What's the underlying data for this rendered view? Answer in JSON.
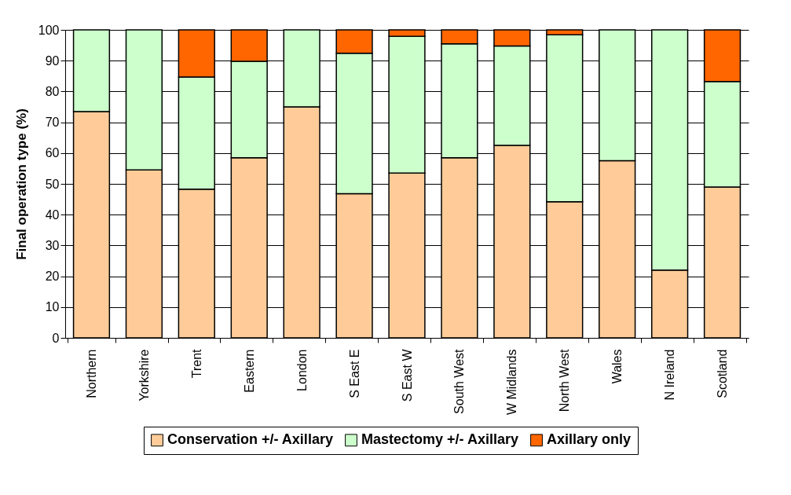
{
  "chart_data": {
    "type": "bar",
    "stacked": true,
    "ylabel": "Final operation type (%)",
    "categories": [
      "Northern",
      "Yorkshire",
      "Trent",
      "Eastern",
      "London",
      "S East E",
      "S East W",
      "South West",
      "W Midlands",
      "North West",
      "Wales",
      "N Ireland",
      "Scotland"
    ],
    "series": [
      {
        "name": "Conservation +/- Axillary",
        "color": "#ffcc99",
        "values": [
          73.5,
          54.5,
          48.3,
          58.5,
          75,
          46.8,
          53.5,
          58.5,
          62.5,
          44.2,
          57.5,
          22,
          49
        ]
      },
      {
        "name": "Mastectomy +/- Axillary",
        "color": "#ccffcc",
        "values": [
          26.5,
          45.5,
          36.4,
          31.3,
          25,
          45.6,
          44.4,
          37,
          32.3,
          54.2,
          42.5,
          78,
          34.2
        ]
      },
      {
        "name": "Axillary only",
        "color": "#ff6600",
        "values": [
          null,
          null,
          15.3,
          10.2,
          null,
          7.6,
          2.1,
          4.5,
          5.2,
          1.6,
          null,
          null,
          16.8
        ]
      }
    ],
    "ylim": [
      0,
      100
    ],
    "yticks": [
      0,
      10,
      20,
      30,
      40,
      50,
      60,
      70,
      80,
      90,
      100
    ],
    "grid": "y",
    "legend": "bottom"
  }
}
